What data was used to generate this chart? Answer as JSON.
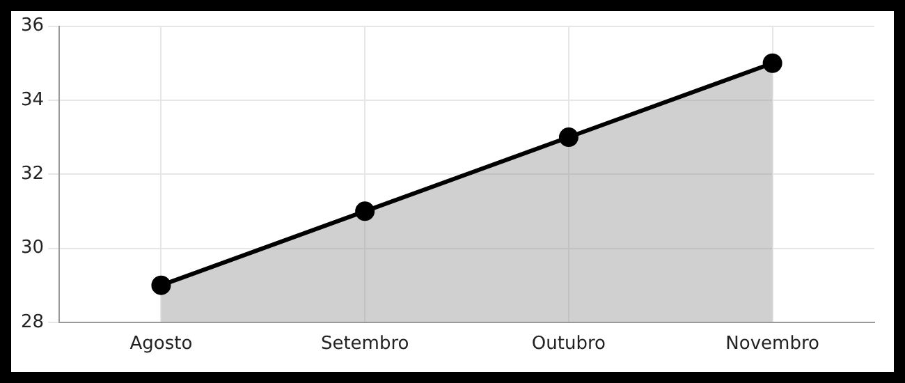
{
  "chart_data": {
    "type": "area",
    "categories": [
      "Agosto",
      "Setembro",
      "Outubro",
      "Novembro"
    ],
    "series": [
      {
        "color": "#000000",
        "values": [
          29,
          31,
          33,
          35
        ]
      }
    ],
    "ylim": [
      28,
      36
    ],
    "yticks": [
      28,
      30,
      32,
      34,
      36
    ],
    "grid": true,
    "marker": "circle",
    "line_style": "solid"
  }
}
